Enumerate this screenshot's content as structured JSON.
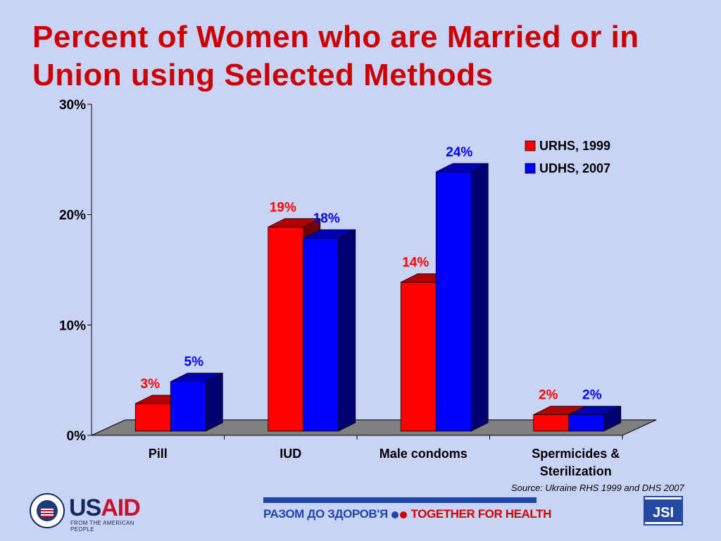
{
  "title": "Percent of Women who are Married or in Union using Selected Methods",
  "source": "Source: Ukraine RHS 1999 and DHS 2007",
  "logos": {
    "usaid_word": "USAID",
    "usaid_tagline": "FROM THE AMERICAN PEOPLE",
    "banner_ukrainian": "РАЗОМ ДО ЗДОРОВ'Я",
    "banner_english": "TOGETHER FOR HEALTH",
    "jsi": "JSI"
  },
  "colors": {
    "background": "#c8d3f5",
    "title": "#cc0000",
    "urhs": "#ff0000",
    "udhs": "#0000ff",
    "floor": "#808080"
  },
  "chart_data": {
    "type": "bar",
    "categories": [
      [
        "Pill"
      ],
      [
        "IUD"
      ],
      [
        "Male condoms"
      ],
      [
        "Spermicides &",
        "Sterilization"
      ]
    ],
    "series": [
      {
        "name": "URHS, 1999",
        "values": [
          3,
          19,
          14,
          2
        ],
        "labels": [
          "3%",
          "19%",
          "14%",
          "2%"
        ],
        "color": "#ff0000"
      },
      {
        "name": "UDHS, 2007",
        "values": [
          5,
          18,
          24,
          2
        ],
        "labels": [
          "5%",
          "18%",
          "24%",
          "2%"
        ],
        "color": "#0000ff"
      }
    ],
    "ylim": [
      0,
      30
    ],
    "yticks": [
      0,
      10,
      20,
      30
    ],
    "ytick_labels": [
      "0%",
      "10%",
      "20%",
      "30%"
    ],
    "legend_position": "top-right",
    "three_d": true,
    "grid": false
  }
}
